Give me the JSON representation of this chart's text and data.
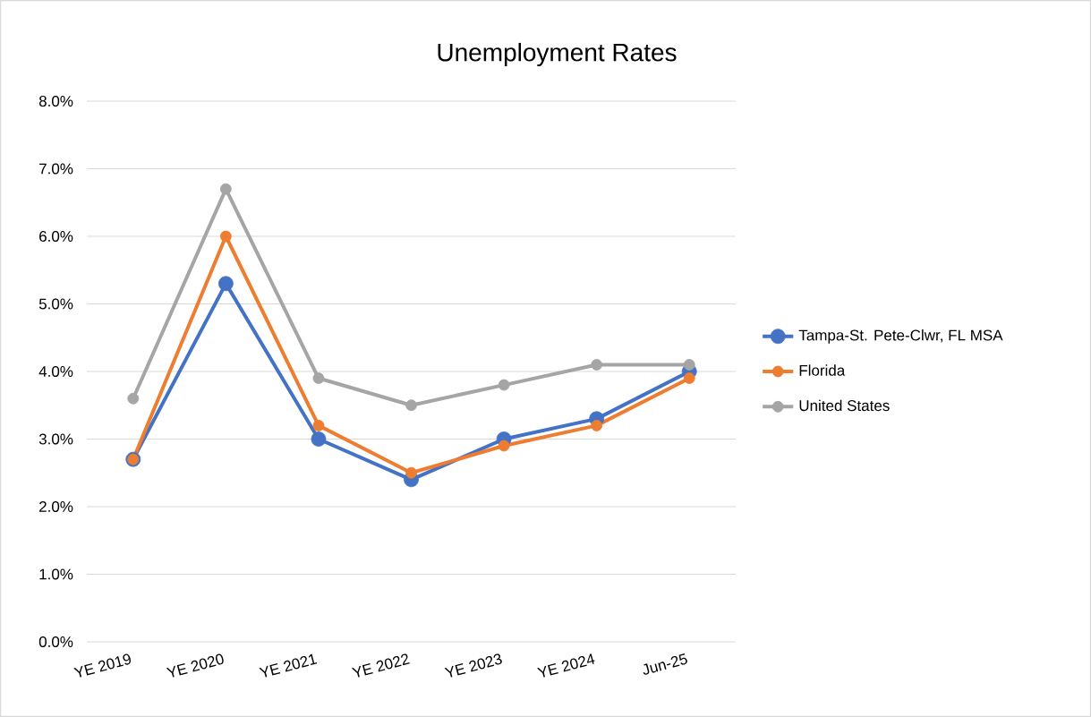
{
  "chart_data": {
    "type": "line",
    "title": "Unemployment Rates",
    "categories": [
      "YE 2019",
      "YE 2020",
      "YE 2021",
      "YE 2022",
      "YE 2023",
      "YE 2024",
      "Jun-25"
    ],
    "series": [
      {
        "name": "Tampa-St. Pete-Clwr, FL MSA",
        "color": "#4472c4",
        "values": [
          2.7,
          5.3,
          3.0,
          2.4,
          3.0,
          3.3,
          4.0
        ]
      },
      {
        "name": "Florida",
        "color": "#ed7d31",
        "values": [
          2.7,
          6.0,
          3.2,
          2.5,
          2.9,
          3.2,
          3.9
        ]
      },
      {
        "name": "United States",
        "color": "#a5a5a5",
        "values": [
          3.6,
          6.7,
          3.9,
          3.5,
          3.8,
          4.1,
          4.1
        ]
      }
    ],
    "ylim": [
      0,
      8
    ],
    "yticks": [
      {
        "value": 0,
        "label": "0.0%"
      },
      {
        "value": 1,
        "label": "1.0%"
      },
      {
        "value": 2,
        "label": "2.0%"
      },
      {
        "value": 3,
        "label": "3.0%"
      },
      {
        "value": 4,
        "label": "4.0%"
      },
      {
        "value": 5,
        "label": "5.0%"
      },
      {
        "value": 6,
        "label": "6.0%"
      },
      {
        "value": 7,
        "label": "7.0%"
      },
      {
        "value": 8,
        "label": "8.0%"
      }
    ],
    "grid": "y",
    "legend": "right",
    "marker": "circle",
    "line_style": "solid"
  }
}
